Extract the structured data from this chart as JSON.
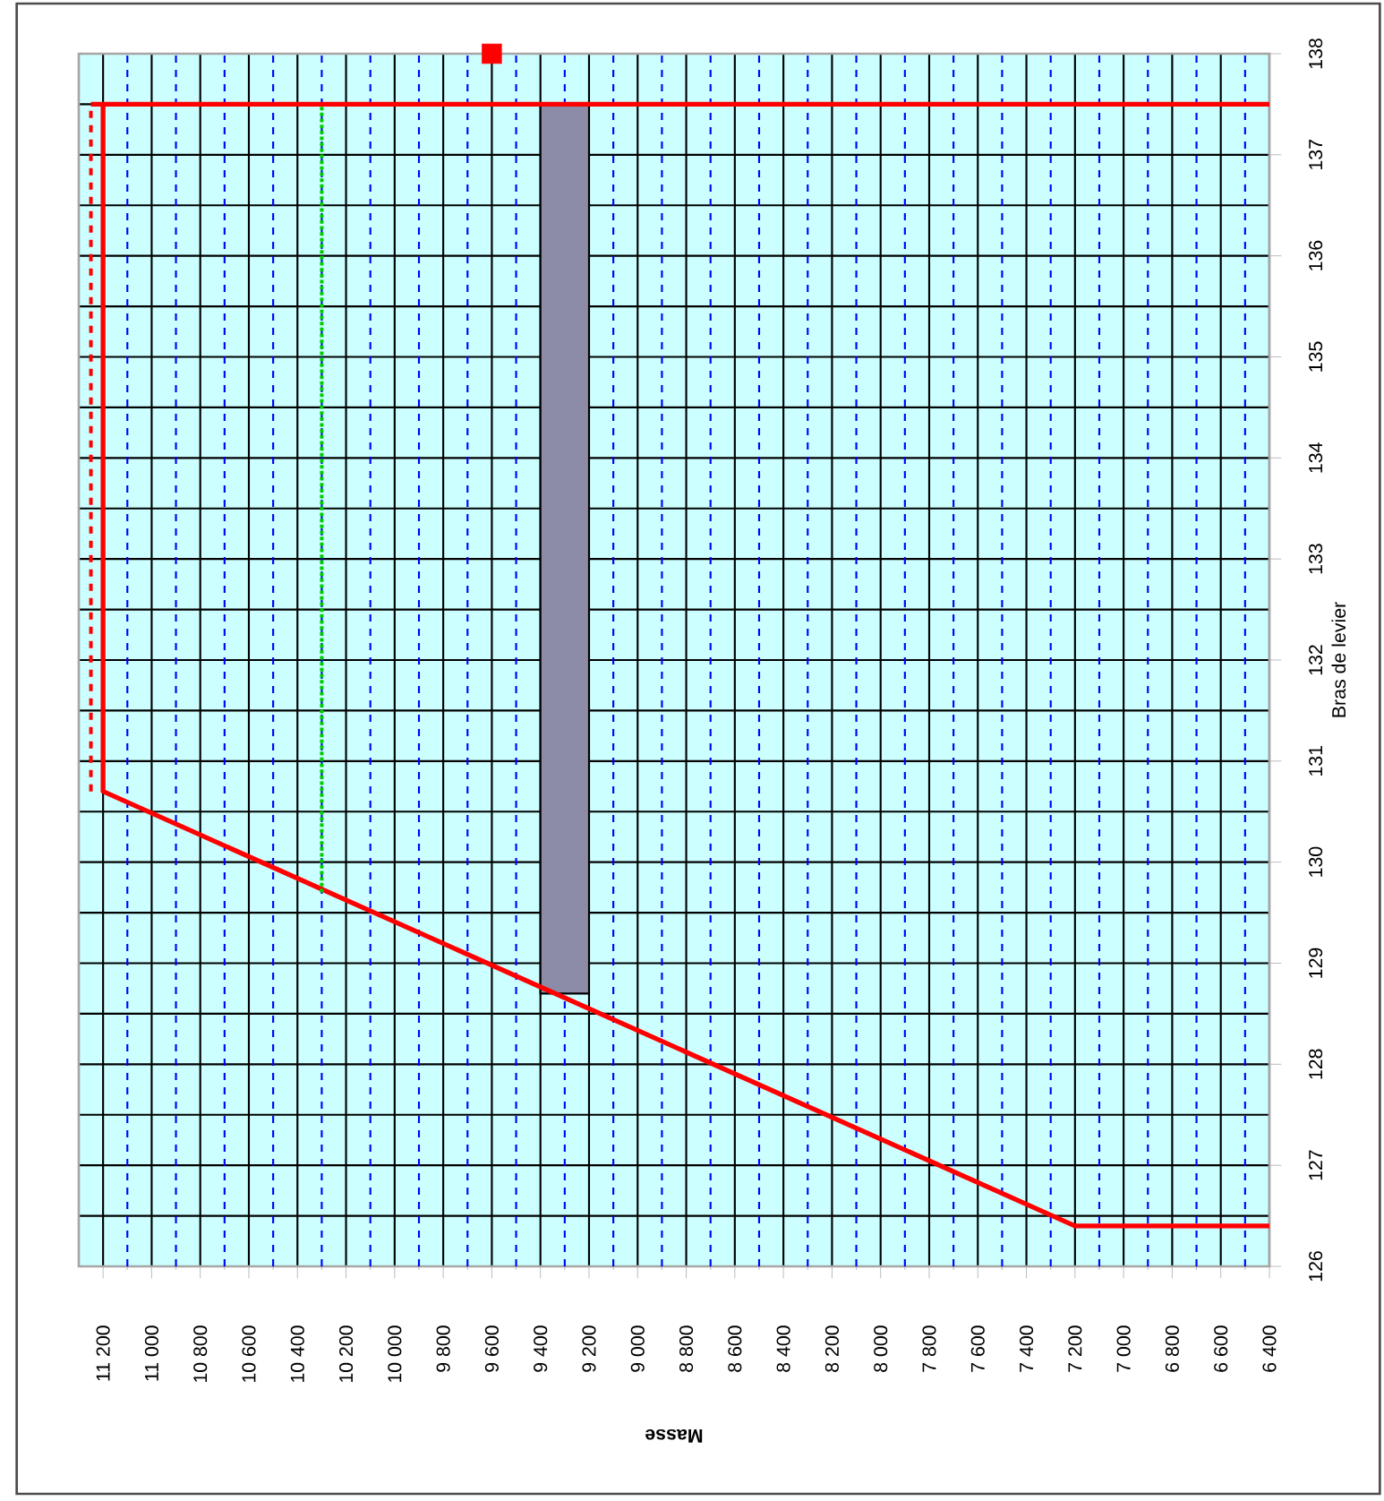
{
  "chart_data": {
    "type": "line",
    "xlabel": "Masse",
    "ylabel": "Bras de levier",
    "xlim": [
      11300,
      6400
    ],
    "ylim": [
      126,
      138
    ],
    "xticks": [
      {
        "value": 11200,
        "label": "11 200"
      },
      {
        "value": 11000,
        "label": "11 000"
      },
      {
        "value": 10800,
        "label": "10 800"
      },
      {
        "value": 10600,
        "label": "10 600"
      },
      {
        "value": 10400,
        "label": "10 400"
      },
      {
        "value": 10200,
        "label": "10 200"
      },
      {
        "value": 10000,
        "label": "10 000"
      },
      {
        "value": 9800,
        "label": "9 800"
      },
      {
        "value": 9600,
        "label": "9 600"
      },
      {
        "value": 9400,
        "label": "9 400"
      },
      {
        "value": 9200,
        "label": "9 200"
      },
      {
        "value": 9000,
        "label": "9 000"
      },
      {
        "value": 8800,
        "label": "8 800"
      },
      {
        "value": 8600,
        "label": "8 600"
      },
      {
        "value": 8400,
        "label": "8 400"
      },
      {
        "value": 8200,
        "label": "8 200"
      },
      {
        "value": 8000,
        "label": "8 000"
      },
      {
        "value": 7800,
        "label": "7 800"
      },
      {
        "value": 7600,
        "label": "7 600"
      },
      {
        "value": 7400,
        "label": "7 400"
      },
      {
        "value": 7200,
        "label": "7 200"
      },
      {
        "value": 7000,
        "label": "7 000"
      },
      {
        "value": 6800,
        "label": "6 800"
      },
      {
        "value": 6600,
        "label": "6 600"
      },
      {
        "value": 6400,
        "label": "6 400"
      },
      {
        "value": 11100,
        "label": null
      },
      {
        "value": 10900,
        "label": null
      },
      {
        "value": 10700,
        "label": null
      },
      {
        "value": 10500,
        "label": null
      },
      {
        "value": 10300,
        "label": null
      },
      {
        "value": 10100,
        "label": null
      },
      {
        "value": 9900,
        "label": null
      },
      {
        "value": 9700,
        "label": null
      },
      {
        "value": 9500,
        "label": null
      },
      {
        "value": 9300,
        "label": null
      },
      {
        "value": 9100,
        "label": null
      },
      {
        "value": 8900,
        "label": null
      },
      {
        "value": 8700,
        "label": null
      },
      {
        "value": 8500,
        "label": null
      },
      {
        "value": 8300,
        "label": null
      },
      {
        "value": 8100,
        "label": null
      },
      {
        "value": 7900,
        "label": null
      },
      {
        "value": 7700,
        "label": null
      },
      {
        "value": 7500,
        "label": null
      },
      {
        "value": 7300,
        "label": null
      },
      {
        "value": 7100,
        "label": null
      },
      {
        "value": 6900,
        "label": null
      },
      {
        "value": 6700,
        "label": null
      },
      {
        "value": 6500,
        "label": null
      }
    ],
    "yticks": [
      126,
      127,
      128,
      129,
      130,
      131,
      132,
      133,
      134,
      135,
      136,
      137,
      138
    ],
    "grid": true,
    "series": [
      {
        "type": "bar",
        "x": [
          9300
        ],
        "base": [
          128.7
        ],
        "values": [
          8.8
        ],
        "color": "#8c8ca8"
      },
      {
        "x": [
          6400,
          7200,
          11200,
          11200
        ],
        "values": [
          126.4,
          126.4,
          130.7,
          137.5
        ],
        "color": "#ff0000",
        "line_style": "solid"
      },
      {
        "x": [
          11250,
          6400
        ],
        "values": [
          137.5,
          137.5
        ],
        "color": "#ff0000",
        "line_style": "solid"
      },
      {
        "x": [
          11250,
          11250
        ],
        "values": [
          130.7,
          137.5
        ],
        "color": "#ff0000",
        "line_style": "dashed"
      },
      {
        "x": [
          10300,
          10300
        ],
        "values": [
          129.7,
          137.5
        ],
        "color": "#00cc00",
        "line_style": "dotted"
      },
      {
        "type": "scatter",
        "x": [
          9600
        ],
        "values": [
          138
        ],
        "color": "#ff0000",
        "marker": "square"
      }
    ]
  }
}
